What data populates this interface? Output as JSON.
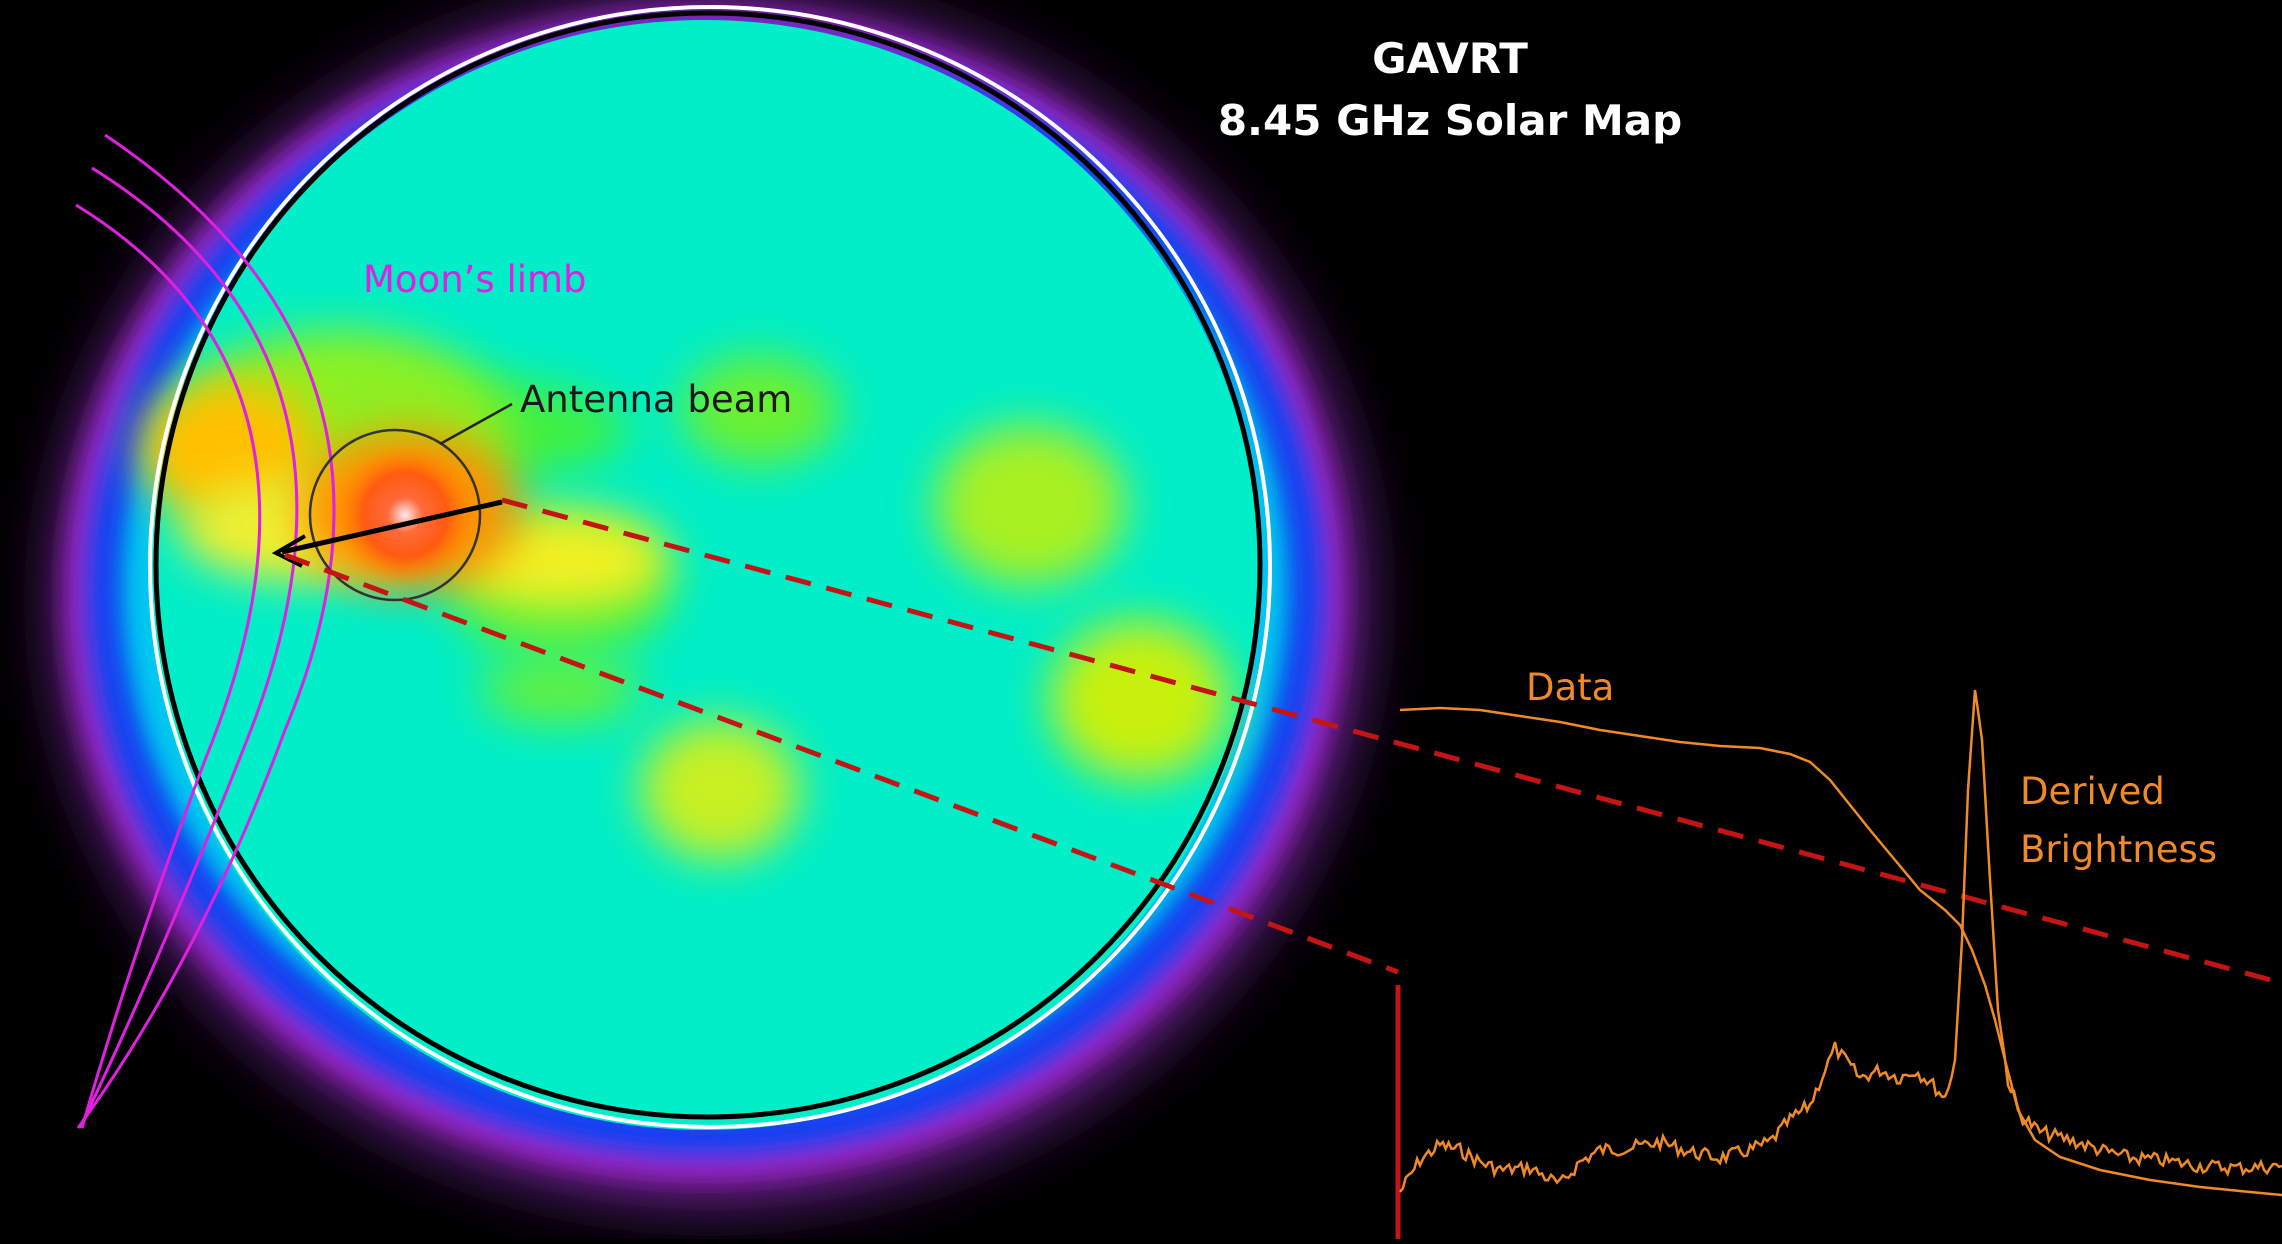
{
  "title": {
    "line1": "GAVRT",
    "line2": "8.45 GHz Solar Map"
  },
  "labels": {
    "moon_limb": "Moon’s limb",
    "antenna_beam": "Antenna beam",
    "data": "Data",
    "derived_brightness_line1": "Derived",
    "derived_brightness_line2": "Brightness"
  },
  "colors": {
    "background": "#000000",
    "moon_limb": "#e020e0",
    "data_curve": "#f08a24",
    "dashed_lines": "#c41414",
    "solar_disk_outline": "#000000",
    "solar_limb_ring": "#ffffff",
    "heatmap_base": "#00f0c8"
  }
}
